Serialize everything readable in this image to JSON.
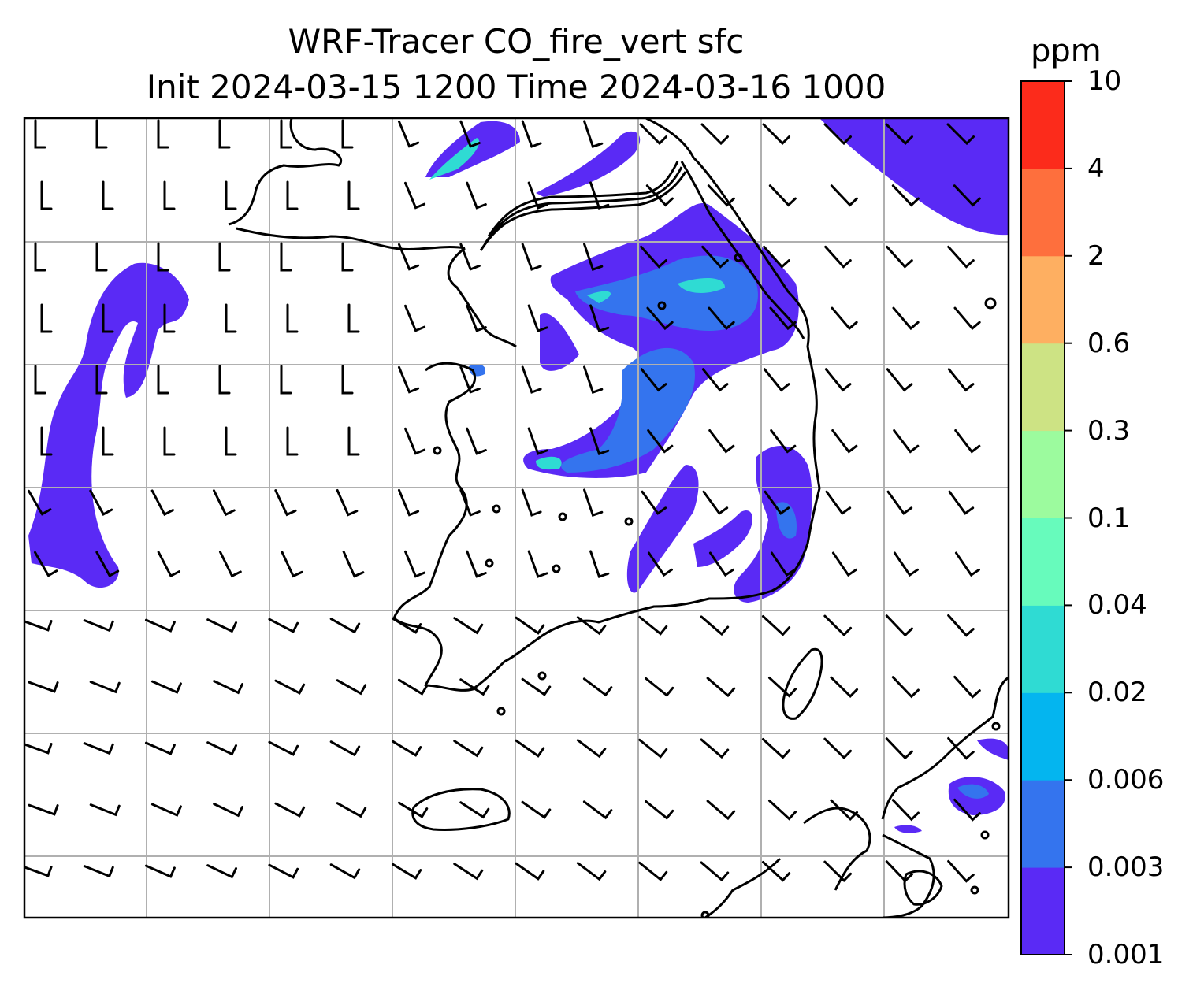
{
  "title_line1": "WRF-Tracer CO_fire_vert sfc",
  "title_line2": "Init 2024-03-15 1200 Time 2024-03-16 1000",
  "colorbar": {
    "units": "ppm",
    "levels": [
      "0.001",
      "0.003",
      "0.006",
      "0.02",
      "0.04",
      "0.1",
      "0.3",
      "0.6",
      "2",
      "4",
      "10"
    ],
    "colors": [
      "#5a2af5",
      "#3474ee",
      "#04b5ef",
      "#2fdbd3",
      "#67fbbc",
      "#9cfb9e",
      "#cde384",
      "#feaf61",
      "#fe6f3d",
      "#fc2b1b"
    ]
  },
  "map": {
    "colors": {
      "land_line": "#000000",
      "grid": "#b0b0b0",
      "barb": "#000000"
    },
    "icons": [
      "coastline",
      "wind-barb",
      "gridline"
    ]
  }
}
